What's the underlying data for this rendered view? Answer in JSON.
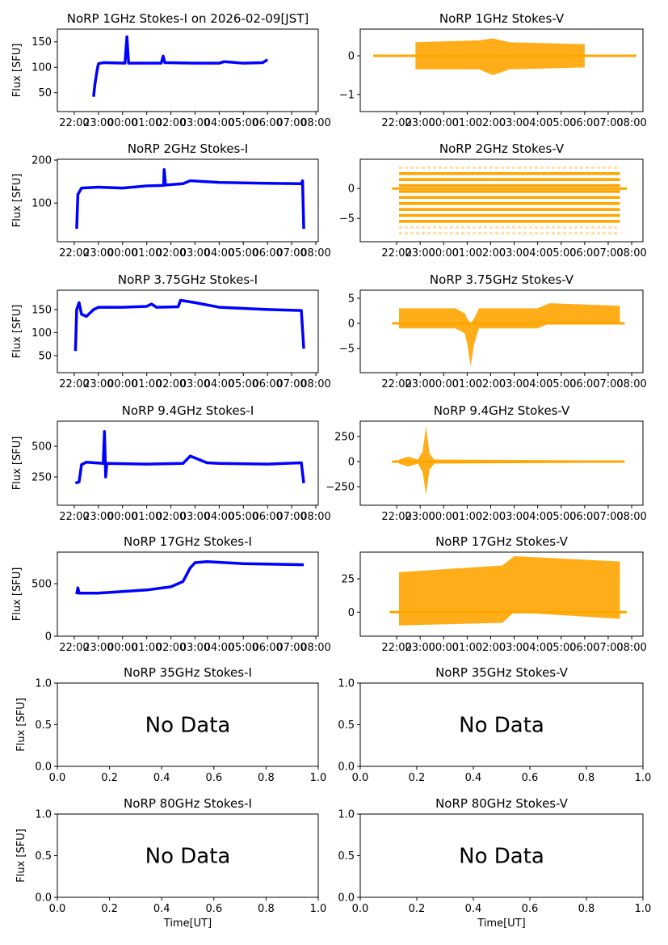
{
  "chart_data": [
    {
      "type": "line",
      "title": "NoRP 1GHz Stokes-I on 2026-02-09[JST]",
      "ylabel": "Flux [SFU]",
      "xlabel": "",
      "color": "#0000ff",
      "xkind": "time",
      "ylim": [
        13,
        175
      ],
      "yticks": [
        50,
        100,
        150
      ],
      "line": [
        [
          0.8,
          42
        ],
        [
          0.85,
          65
        ],
        [
          0.95,
          95
        ],
        [
          1.0,
          107
        ],
        [
          1.2,
          109
        ],
        [
          2.1,
          108
        ],
        [
          2.18,
          160
        ],
        [
          2.25,
          108
        ],
        [
          3.6,
          108
        ],
        [
          3.68,
          122
        ],
        [
          3.75,
          109
        ],
        [
          5,
          108
        ],
        [
          6,
          108
        ],
        [
          6.2,
          111
        ],
        [
          7,
          108
        ],
        [
          7.8,
          109
        ],
        [
          8.0,
          115
        ]
      ]
    },
    {
      "type": "area",
      "title": "NoRP 1GHz Stokes-V",
      "ylabel": "",
      "xlabel": "",
      "color": "#ffa500",
      "xkind": "time",
      "ylim": [
        -1.44,
        0.69
      ],
      "yticks": [
        -1,
        0
      ],
      "band": [
        [
          0.8,
          -0.35,
          0.35
        ],
        [
          3.5,
          -0.35,
          0.4
        ],
        [
          4.1,
          -0.5,
          0.45
        ],
        [
          4.8,
          -0.35,
          0.35
        ],
        [
          8,
          -0.3,
          0.3
        ]
      ],
      "baseline": [
        -1.0,
        10.2,
        0
      ]
    },
    {
      "type": "line",
      "title": "NoRP 2GHz Stokes-I",
      "ylabel": "Flux [SFU]",
      "xlabel": "",
      "color": "#0000ff",
      "xkind": "time",
      "ylim": [
        10,
        202
      ],
      "yticks": [
        100,
        200
      ],
      "line": [
        [
          0.1,
          40
        ],
        [
          0.15,
          120
        ],
        [
          0.3,
          135
        ],
        [
          1,
          137
        ],
        [
          2,
          135
        ],
        [
          3,
          140
        ],
        [
          3.7,
          141
        ],
        [
          3.72,
          178
        ],
        [
          3.78,
          142
        ],
        [
          4.5,
          145
        ],
        [
          4.8,
          152
        ],
        [
          6,
          148
        ],
        [
          8,
          146
        ],
        [
          9.4,
          145
        ],
        [
          9.45,
          152
        ],
        [
          9.5,
          40
        ]
      ]
    },
    {
      "type": "area",
      "title": "NoRP 2GHz Stokes-V",
      "ylabel": "",
      "xlabel": "",
      "color": "#ffa500",
      "xkind": "time",
      "ylim": [
        -8.9,
        4.9
      ],
      "yticks": [
        -5,
        0
      ],
      "hlines": [
        2.5,
        1.5,
        0.5,
        -0.5,
        -1.5,
        -2.5,
        -3.5,
        -4.5,
        -5.5
      ],
      "faint_hlines": [
        3.5,
        -6.5,
        -7.5
      ],
      "hrange": [
        0.1,
        9.5
      ],
      "baseline": [
        -0.2,
        9.8,
        0
      ]
    },
    {
      "type": "line",
      "title": "NoRP 3.75GHz Stokes-I",
      "ylabel": "Flux [SFU]",
      "xlabel": "",
      "color": "#0000ff",
      "xkind": "time",
      "ylim": [
        13,
        192
      ],
      "yticks": [
        50,
        100,
        150
      ],
      "line": [
        [
          0.05,
          60
        ],
        [
          0.1,
          150
        ],
        [
          0.2,
          165
        ],
        [
          0.3,
          140
        ],
        [
          0.5,
          135
        ],
        [
          0.8,
          150
        ],
        [
          1,
          155
        ],
        [
          2,
          155
        ],
        [
          3,
          157
        ],
        [
          3.2,
          162
        ],
        [
          3.4,
          155
        ],
        [
          4.3,
          156
        ],
        [
          4.4,
          170
        ],
        [
          5,
          165
        ],
        [
          6,
          155
        ],
        [
          8,
          150
        ],
        [
          9.4,
          148
        ],
        [
          9.5,
          65
        ]
      ]
    },
    {
      "type": "area",
      "title": "NoRP 3.75GHz Stokes-V",
      "ylabel": "",
      "xlabel": "",
      "color": "#ffa500",
      "xkind": "time",
      "ylim": [
        -9.8,
        6.6
      ],
      "yticks": [
        -5,
        0,
        5
      ],
      "band": [
        [
          0.1,
          -1,
          3
        ],
        [
          2.5,
          -1,
          3
        ],
        [
          2.9,
          -2,
          2
        ],
        [
          3.0,
          -4,
          1
        ],
        [
          3.15,
          -8.5,
          0
        ],
        [
          3.3,
          -4,
          1
        ],
        [
          3.5,
          -1,
          3
        ],
        [
          6,
          -1,
          3
        ],
        [
          6.5,
          0,
          4
        ],
        [
          9.5,
          0,
          3.5
        ]
      ],
      "baseline": [
        -0.2,
        9.7,
        0
      ]
    },
    {
      "type": "line",
      "title": "NoRP 9.4GHz Stokes-I",
      "ylabel": "Flux [SFU]",
      "xlabel": "",
      "color": "#0000ff",
      "xkind": "time",
      "ylim": [
        20,
        704
      ],
      "yticks": [
        250,
        500
      ],
      "line": [
        [
          0.05,
          200
        ],
        [
          0.2,
          210
        ],
        [
          0.3,
          350
        ],
        [
          0.5,
          370
        ],
        [
          1.2,
          360
        ],
        [
          1.25,
          620
        ],
        [
          1.3,
          250
        ],
        [
          1.35,
          360
        ],
        [
          3,
          355
        ],
        [
          4.5,
          360
        ],
        [
          4.8,
          420
        ],
        [
          5.5,
          365
        ],
        [
          6,
          360
        ],
        [
          8,
          355
        ],
        [
          9.4,
          365
        ],
        [
          9.5,
          200
        ]
      ]
    },
    {
      "type": "area",
      "title": "NoRP 9.4GHz Stokes-V",
      "ylabel": "",
      "xlabel": "",
      "color": "#ffa500",
      "xkind": "time",
      "ylim": [
        -435,
        403
      ],
      "yticks": [
        -250,
        0,
        250
      ],
      "band": [
        [
          0.1,
          -20,
          20
        ],
        [
          0.5,
          -50,
          50
        ],
        [
          0.9,
          -20,
          20
        ],
        [
          1.1,
          -100,
          100
        ],
        [
          1.25,
          -330,
          350
        ],
        [
          1.4,
          -80,
          80
        ],
        [
          1.6,
          -20,
          20
        ],
        [
          9.5,
          -10,
          10
        ]
      ],
      "baseline": [
        -0.2,
        9.7,
        0
      ]
    },
    {
      "type": "line",
      "title": "NoRP 17GHz Stokes-I",
      "ylabel": "Flux [SFU]",
      "xlabel": "",
      "color": "#0000ff",
      "xkind": "time",
      "ylim": [
        0,
        800
      ],
      "yticks": [
        0,
        500
      ],
      "line": [
        [
          0.1,
          400
        ],
        [
          0.15,
          460
        ],
        [
          0.2,
          410
        ],
        [
          1,
          410
        ],
        [
          3,
          440
        ],
        [
          4,
          470
        ],
        [
          4.5,
          520
        ],
        [
          4.8,
          650
        ],
        [
          5,
          700
        ],
        [
          5.5,
          710
        ],
        [
          7,
          690
        ],
        [
          9.5,
          680
        ]
      ]
    },
    {
      "type": "area",
      "title": "NoRP 17GHz Stokes-V",
      "ylabel": "",
      "xlabel": "",
      "color": "#ffa500",
      "xkind": "time",
      "ylim": [
        -18,
        45
      ],
      "yticks": [
        0,
        25
      ],
      "band": [
        [
          0.1,
          -10,
          30
        ],
        [
          4.5,
          -8,
          35
        ],
        [
          5,
          0,
          42
        ],
        [
          9.5,
          -5,
          38
        ]
      ],
      "baseline": [
        -0.3,
        9.8,
        0
      ]
    },
    {
      "type": "empty",
      "title": "NoRP 35GHz Stokes-I",
      "ylabel": "Flux [SFU]",
      "xlabel": "",
      "message": "No Data",
      "xkind": "unit",
      "ylim": [
        0,
        1
      ],
      "yticks": [
        0,
        0.5,
        1
      ]
    },
    {
      "type": "empty",
      "title": "NoRP 35GHz Stokes-V",
      "ylabel": "",
      "xlabel": "",
      "message": "No Data",
      "xkind": "unit",
      "ylim": [
        0,
        1
      ],
      "yticks": [
        0,
        0.5,
        1
      ]
    },
    {
      "type": "empty",
      "title": "NoRP 80GHz Stokes-I",
      "ylabel": "Flux [SFU]",
      "xlabel": "Time[UT]",
      "message": "No Data",
      "xkind": "unit",
      "ylim": [
        0,
        1
      ],
      "yticks": [
        0,
        0.5,
        1
      ]
    },
    {
      "type": "empty",
      "title": "NoRP 80GHz Stokes-V",
      "ylabel": "",
      "xlabel": "Time[UT]",
      "message": "No Data",
      "xkind": "unit",
      "ylim": [
        0,
        1
      ],
      "yticks": [
        0,
        0.5,
        1
      ]
    }
  ],
  "time_axis": {
    "ticks": [
      0,
      1,
      2,
      3,
      4,
      5,
      6,
      7,
      8,
      9,
      10
    ],
    "labels": [
      "22:00",
      "23:00",
      "00:00",
      "01:00",
      "02:00",
      "03:00",
      "04:00",
      "05:00",
      "06:00",
      "07:00",
      "08:00"
    ]
  },
  "unit_axis": {
    "ticks": [
      0,
      0.2,
      0.4,
      0.6,
      0.8,
      1.0
    ],
    "labels": [
      "0.0",
      "0.2",
      "0.4",
      "0.6",
      "0.8",
      "1.0"
    ]
  },
  "unit_yticklabels": [
    "0.0",
    "0.5",
    "1.0"
  ]
}
